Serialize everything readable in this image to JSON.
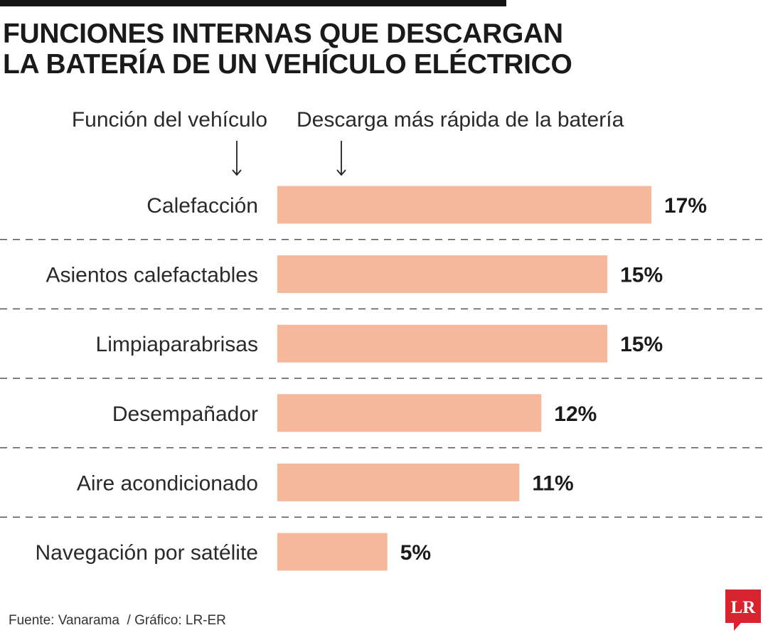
{
  "title": {
    "line1": "FUNCIONES INTERNAS QUE DESCARGAN",
    "line2": "LA BATERÍA DE UN VEHÍCULO ELÉCTRICO"
  },
  "headers": {
    "function": "Función del vehículo",
    "discharge": "Descarga más rápida de la batería"
  },
  "colors": {
    "bar": "#f5b89a",
    "text": "#222222",
    "divider": "#555555",
    "logo": "#d9232e"
  },
  "chart_data": {
    "type": "bar",
    "orientation": "horizontal",
    "title": "FUNCIONES INTERNAS QUE DESCARGAN LA BATERÍA DE UN VEHÍCULO ELÉCTRICO",
    "xlabel": "Descarga más rápida de la batería",
    "ylabel": "Función del vehículo",
    "categories": [
      "Calefacción",
      "Asientos calefactables",
      "Limpiaparabrisas",
      "Desempañador",
      "Aire acondicionado",
      "Navegación por satélite"
    ],
    "values": [
      17,
      15,
      15,
      12,
      11,
      5
    ],
    "value_labels": [
      "17%",
      "15%",
      "15%",
      "12%",
      "11%",
      "5%"
    ],
    "unit": "%",
    "xlim": [
      0,
      17
    ]
  },
  "source": "Fuente: Vanarama  / Gráfico: LR-ER",
  "logo_text": "LR"
}
